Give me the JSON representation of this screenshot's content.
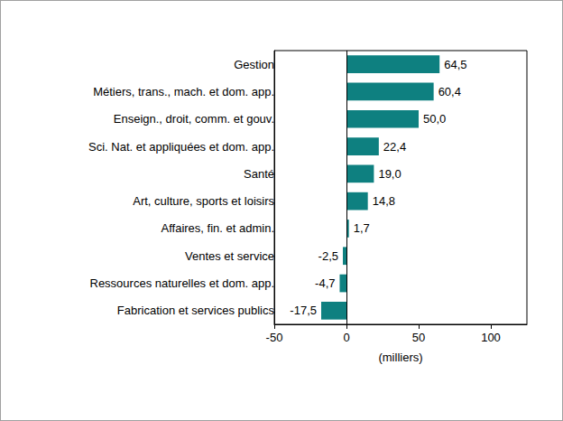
{
  "chart_data": {
    "type": "bar",
    "orientation": "horizontal",
    "categories": [
      "Gestion",
      "Métiers, trans., mach. et dom. app.",
      "Enseign., droit, comm. et gouv.",
      "Sci. Nat. et appliquées et dom. app.",
      "Santé",
      "Art, culture, sports et loisirs",
      "Affaires, fin. et admin.",
      "Ventes et service",
      "Ressources naturelles et dom. app.",
      "Fabrication et services publics"
    ],
    "values": [
      64.5,
      60.4,
      50.0,
      22.4,
      19.0,
      14.8,
      1.7,
      -2.5,
      -4.7,
      -17.5
    ],
    "value_labels": [
      "64,5",
      "60,4",
      "50,0",
      "22,4",
      "19,0",
      "14,8",
      "1,7",
      "-2,5",
      "-4,7",
      "-17,5"
    ],
    "data_labels": true,
    "color": "#0e8080",
    "xlabel": "(milliers)",
    "xlim": [
      -50,
      125
    ],
    "xticks": [
      -50,
      0,
      50,
      100
    ],
    "grid": false
  }
}
